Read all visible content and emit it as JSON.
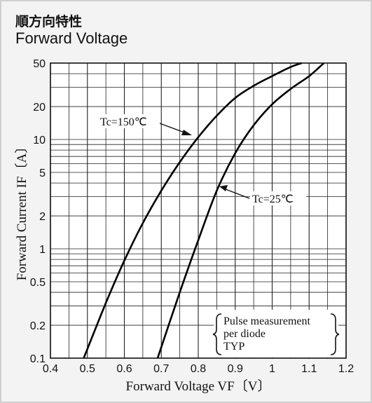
{
  "header": {
    "title_jp": "順方向特性",
    "title_en": "Forward Voltage"
  },
  "chart_data": {
    "type": "line",
    "title": "Forward Voltage",
    "xlabel": "Forward Voltage VF〔V〕",
    "ylabel": "Forward Current IF〔A〕",
    "xlim": [
      0.4,
      1.2
    ],
    "ylim": [
      0.1,
      50
    ],
    "y_scale": "log",
    "grid": true,
    "x_ticks": [
      0.4,
      0.5,
      0.6,
      0.7,
      0.8,
      0.9,
      1.0,
      1.1,
      1.2
    ],
    "x_tick_labels": [
      "0.4",
      "0.5",
      "0.6",
      "0.7",
      "0.8",
      "0.9",
      "1",
      "1.1",
      "1.2"
    ],
    "y_ticks": [
      0.1,
      0.2,
      0.5,
      1,
      2,
      5,
      10,
      20,
      50
    ],
    "y_tick_labels": [
      "0.1",
      "0.2",
      "0.5",
      "1",
      "2",
      "5",
      "10",
      "20",
      "50"
    ],
    "series": [
      {
        "name": "Tc=150℃",
        "x": [
          0.49,
          0.55,
          0.6,
          0.65,
          0.7,
          0.75,
          0.8,
          0.85,
          0.9,
          0.95,
          1.0,
          1.05,
          1.08
        ],
        "y": [
          0.1,
          0.32,
          0.78,
          1.72,
          3.4,
          6.2,
          10.5,
          16.5,
          24,
          31,
          38,
          46,
          50
        ]
      },
      {
        "name": "Tc=25℃",
        "x": [
          0.69,
          0.75,
          0.8,
          0.85,
          0.9,
          0.95,
          1.0,
          1.05,
          1.1,
          1.14
        ],
        "y": [
          0.1,
          0.4,
          1.2,
          3.4,
          7.5,
          13.5,
          21,
          29,
          38,
          50
        ]
      }
    ],
    "annotations": [
      {
        "text": "Tc=150℃",
        "points_to_series": 0
      },
      {
        "text": "Tc=25℃",
        "points_to_series": 1
      }
    ],
    "note_lines": [
      "Pulse measurement",
      "per diode",
      "TYP"
    ]
  }
}
